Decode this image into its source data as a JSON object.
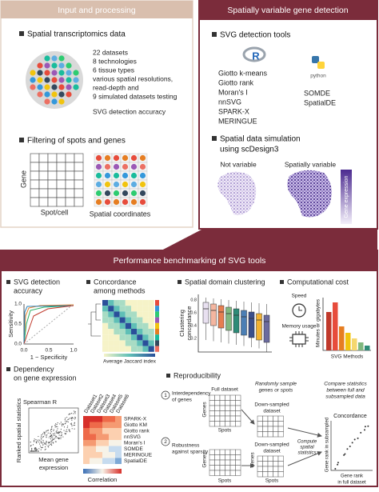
{
  "input": {
    "title": "Input and processing",
    "spatial": {
      "title": "Spatial transcriptomics data",
      "items": [
        "22 datasets",
        "8 technologies",
        "6 tissue types",
        "various spatial resolutions,",
        "read-depth and",
        "9 simulated datasets testing",
        "SVG detection accuracy"
      ]
    },
    "filter": {
      "title": "Filtering of spots and genes",
      "gene": "Gene",
      "spot": "Spot/cell",
      "coords": "Spatial coordinates"
    }
  },
  "detection": {
    "title": "Spatially variable gene detection",
    "tools": {
      "title": "SVG detection tools",
      "r_logo": "R",
      "r_tools": [
        "Giotto k-means",
        "Giotto rank",
        "Moran's I",
        "nnSVG",
        "SPARK-X",
        "MERINGUE"
      ],
      "python_logo": "python",
      "python_tools": [
        "SOMDE",
        "SpatialDE"
      ]
    },
    "simulation": {
      "title": [
        "Spatial data simulation",
        "using scDesign3"
      ],
      "not_variable": "Not variable",
      "variable": "Spatially variable",
      "legend": "Gene expression"
    }
  },
  "benchmark": {
    "title": "Performance benchmarking of SVG tools",
    "accuracy": {
      "title": [
        "SVG detection",
        "accuracy"
      ],
      "ylabel": "Sensitivity",
      "xlabel": "1 − Specificity",
      "yticks": [
        "0.0",
        "0.5",
        "1.0"
      ],
      "xticks": [
        "0.0",
        "0.5",
        "1.0"
      ]
    },
    "concordance": {
      "title": [
        "Concordance",
        "among methods"
      ],
      "legend": "Average Jaccard index"
    },
    "clustering": {
      "title": "Spatial domain clustering",
      "ylabel": [
        "Clustering",
        "concordance"
      ],
      "yticks": [
        "0.8",
        "0.6",
        "0.4",
        "0.2"
      ]
    },
    "cost": {
      "title": "Computational cost",
      "speed": "Speed",
      "memory": "Memory usage",
      "ylabel": "Minutes or gigabytes",
      "xlabel": "SVG Methods"
    },
    "dependency": {
      "title": [
        "Dependency",
        "on gene expression"
      ],
      "stat": "Spearman R",
      "ylabel": "Ranked spatial statistics",
      "xlabel": [
        "Mean gene",
        "expression"
      ],
      "datasets": [
        "Dataset1",
        "Dataset2",
        "Dataset3",
        "Dataset4",
        "Dataset5",
        "Dataset6"
      ],
      "methods": [
        "SPARK-X",
        "Giotto KM",
        "Giotto rank",
        "nnSVG",
        "Moran's I",
        "SOMDE",
        "MERINGUE",
        "SpatialDE"
      ],
      "legend": "Correlation"
    },
    "reproducibility": {
      "title": "Reproducibility",
      "case1": {
        "number": "1",
        "label": [
          "Interdependency",
          "of genes"
        ]
      },
      "case2": {
        "number": "2",
        "label": [
          "Robustness",
          "against sparsity"
        ]
      },
      "full": "Full dataset",
      "genes": "Genes",
      "spots": "Spots",
      "sample": [
        "Randomly sample",
        "genes or spots"
      ],
      "down": [
        "Down-sampled",
        "dataset"
      ],
      "compute": [
        "Compute",
        "spatial",
        "statistics"
      ],
      "compare": [
        "Compare statistics",
        "between full and",
        "subsampled data"
      ],
      "concordance": "Concordance",
      "ylabel": "Gene rank in subsampled",
      "xlabel": [
        "Gene rank",
        "in full dataset"
      ]
    }
  }
}
